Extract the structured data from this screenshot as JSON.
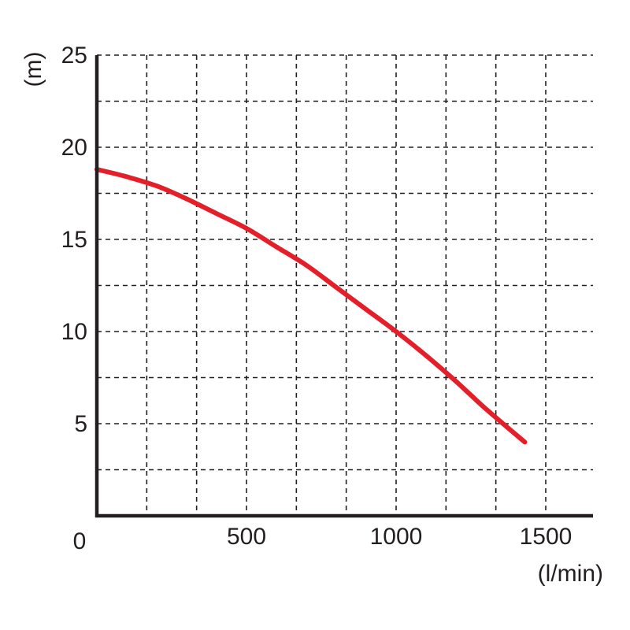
{
  "chart_data": {
    "type": "line",
    "title": "",
    "xlabel": "(l/min)",
    "ylabel": "(m)",
    "origin_label": "0",
    "xlim": [
      0,
      1650
    ],
    "ylim": [
      0,
      25
    ],
    "x_tick_labels": [
      "500",
      "1000",
      "1500"
    ],
    "y_tick_labels": [
      "5",
      "10",
      "15",
      "20",
      "25"
    ],
    "x_ticks": [
      500,
      1000,
      1500
    ],
    "y_ticks": [
      5,
      10,
      15,
      20,
      25
    ],
    "x_grid": [
      166.7,
      333.3,
      500,
      666.7,
      833.3,
      1000,
      1166.7,
      1333.3,
      1500
    ],
    "y_grid": [
      2.5,
      5,
      7.5,
      10,
      12.5,
      15,
      17.5,
      20,
      22.5,
      25
    ],
    "grid": true,
    "grid_style": "dashed",
    "series": [
      {
        "color": "#e3202a",
        "x": [
          0,
          100,
          200,
          300,
          400,
          500,
          600,
          700,
          800,
          900,
          1000,
          1100,
          1200,
          1300,
          1430
        ],
        "y": [
          18.8,
          18.4,
          17.9,
          17.2,
          16.4,
          15.6,
          14.6,
          13.6,
          12.4,
          11.2,
          10.0,
          8.7,
          7.3,
          5.8,
          4.0
        ]
      }
    ]
  }
}
